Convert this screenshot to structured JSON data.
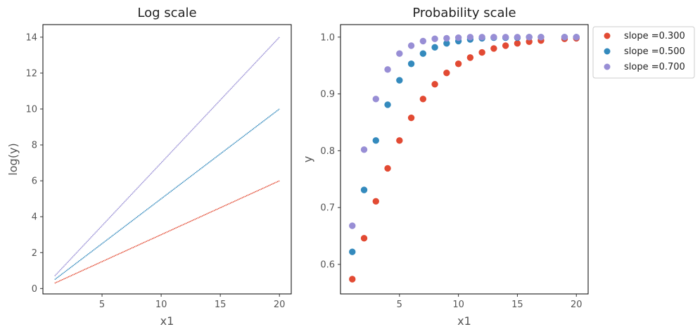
{
  "colors": {
    "series": [
      "#e24a33",
      "#348abd",
      "#988ed5"
    ]
  },
  "chart_data": [
    {
      "type": "line",
      "title": "Log scale",
      "xlabel": "x1",
      "ylabel": "log(y)",
      "xlim": [
        0.0,
        21.0
      ],
      "ylim": [
        -0.3,
        14.7
      ],
      "xticks": [
        5,
        10,
        15,
        20
      ],
      "yticks": [
        0,
        2,
        4,
        6,
        8,
        10,
        12,
        14
      ],
      "grid": false,
      "series": [
        {
          "slope": 0.3,
          "x": [
            1,
            20
          ],
          "y": [
            0.3,
            6.0
          ]
        },
        {
          "slope": 0.5,
          "x": [
            1,
            20
          ],
          "y": [
            0.5,
            10.0
          ]
        },
        {
          "slope": 0.7,
          "x": [
            1,
            20
          ],
          "y": [
            0.7,
            14.0
          ]
        }
      ]
    },
    {
      "type": "scatter",
      "title": "Probability scale",
      "xlabel": "x1",
      "ylabel": "y",
      "xlim": [
        0.0,
        21.0
      ],
      "ylim": [
        0.548,
        1.022
      ],
      "xticks": [
        5,
        10,
        15,
        20
      ],
      "yticks": [
        0.6,
        0.7,
        0.8,
        0.9,
        1.0
      ],
      "ytick_labels": [
        "0.6",
        "0.7",
        "0.8",
        "0.9",
        "1.0"
      ],
      "grid": false,
      "legend_position": "outside-upper-right",
      "series": [
        {
          "name": "slope =0.300",
          "x": [
            1,
            2,
            3,
            4,
            5,
            6,
            7,
            8,
            9,
            10,
            11,
            12,
            13,
            14,
            15,
            16,
            17,
            19,
            20
          ],
          "y": [
            0.574,
            0.646,
            0.711,
            0.769,
            0.818,
            0.858,
            0.891,
            0.917,
            0.937,
            0.953,
            0.964,
            0.973,
            0.98,
            0.985,
            0.989,
            0.992,
            0.994,
            0.997,
            0.998
          ]
        },
        {
          "name": "slope =0.500",
          "x": [
            1,
            2,
            3,
            4,
            5,
            6,
            7,
            8,
            9,
            10,
            11,
            12,
            13,
            14,
            15,
            16,
            17,
            19,
            20
          ],
          "y": [
            0.622,
            0.731,
            0.818,
            0.881,
            0.924,
            0.953,
            0.971,
            0.982,
            0.989,
            0.993,
            0.996,
            0.998,
            0.999,
            0.999,
            0.999,
            1.0,
            1.0,
            1.0,
            1.0
          ]
        },
        {
          "name": "slope =0.700",
          "x": [
            1,
            2,
            3,
            4,
            5,
            6,
            7,
            8,
            9,
            10,
            11,
            12,
            13,
            14,
            15,
            16,
            17,
            19,
            20
          ],
          "y": [
            0.668,
            0.802,
            0.891,
            0.943,
            0.971,
            0.985,
            0.993,
            0.997,
            0.998,
            0.999,
            1.0,
            1.0,
            1.0,
            1.0,
            1.0,
            1.0,
            1.0,
            1.0,
            1.0
          ]
        }
      ]
    }
  ]
}
